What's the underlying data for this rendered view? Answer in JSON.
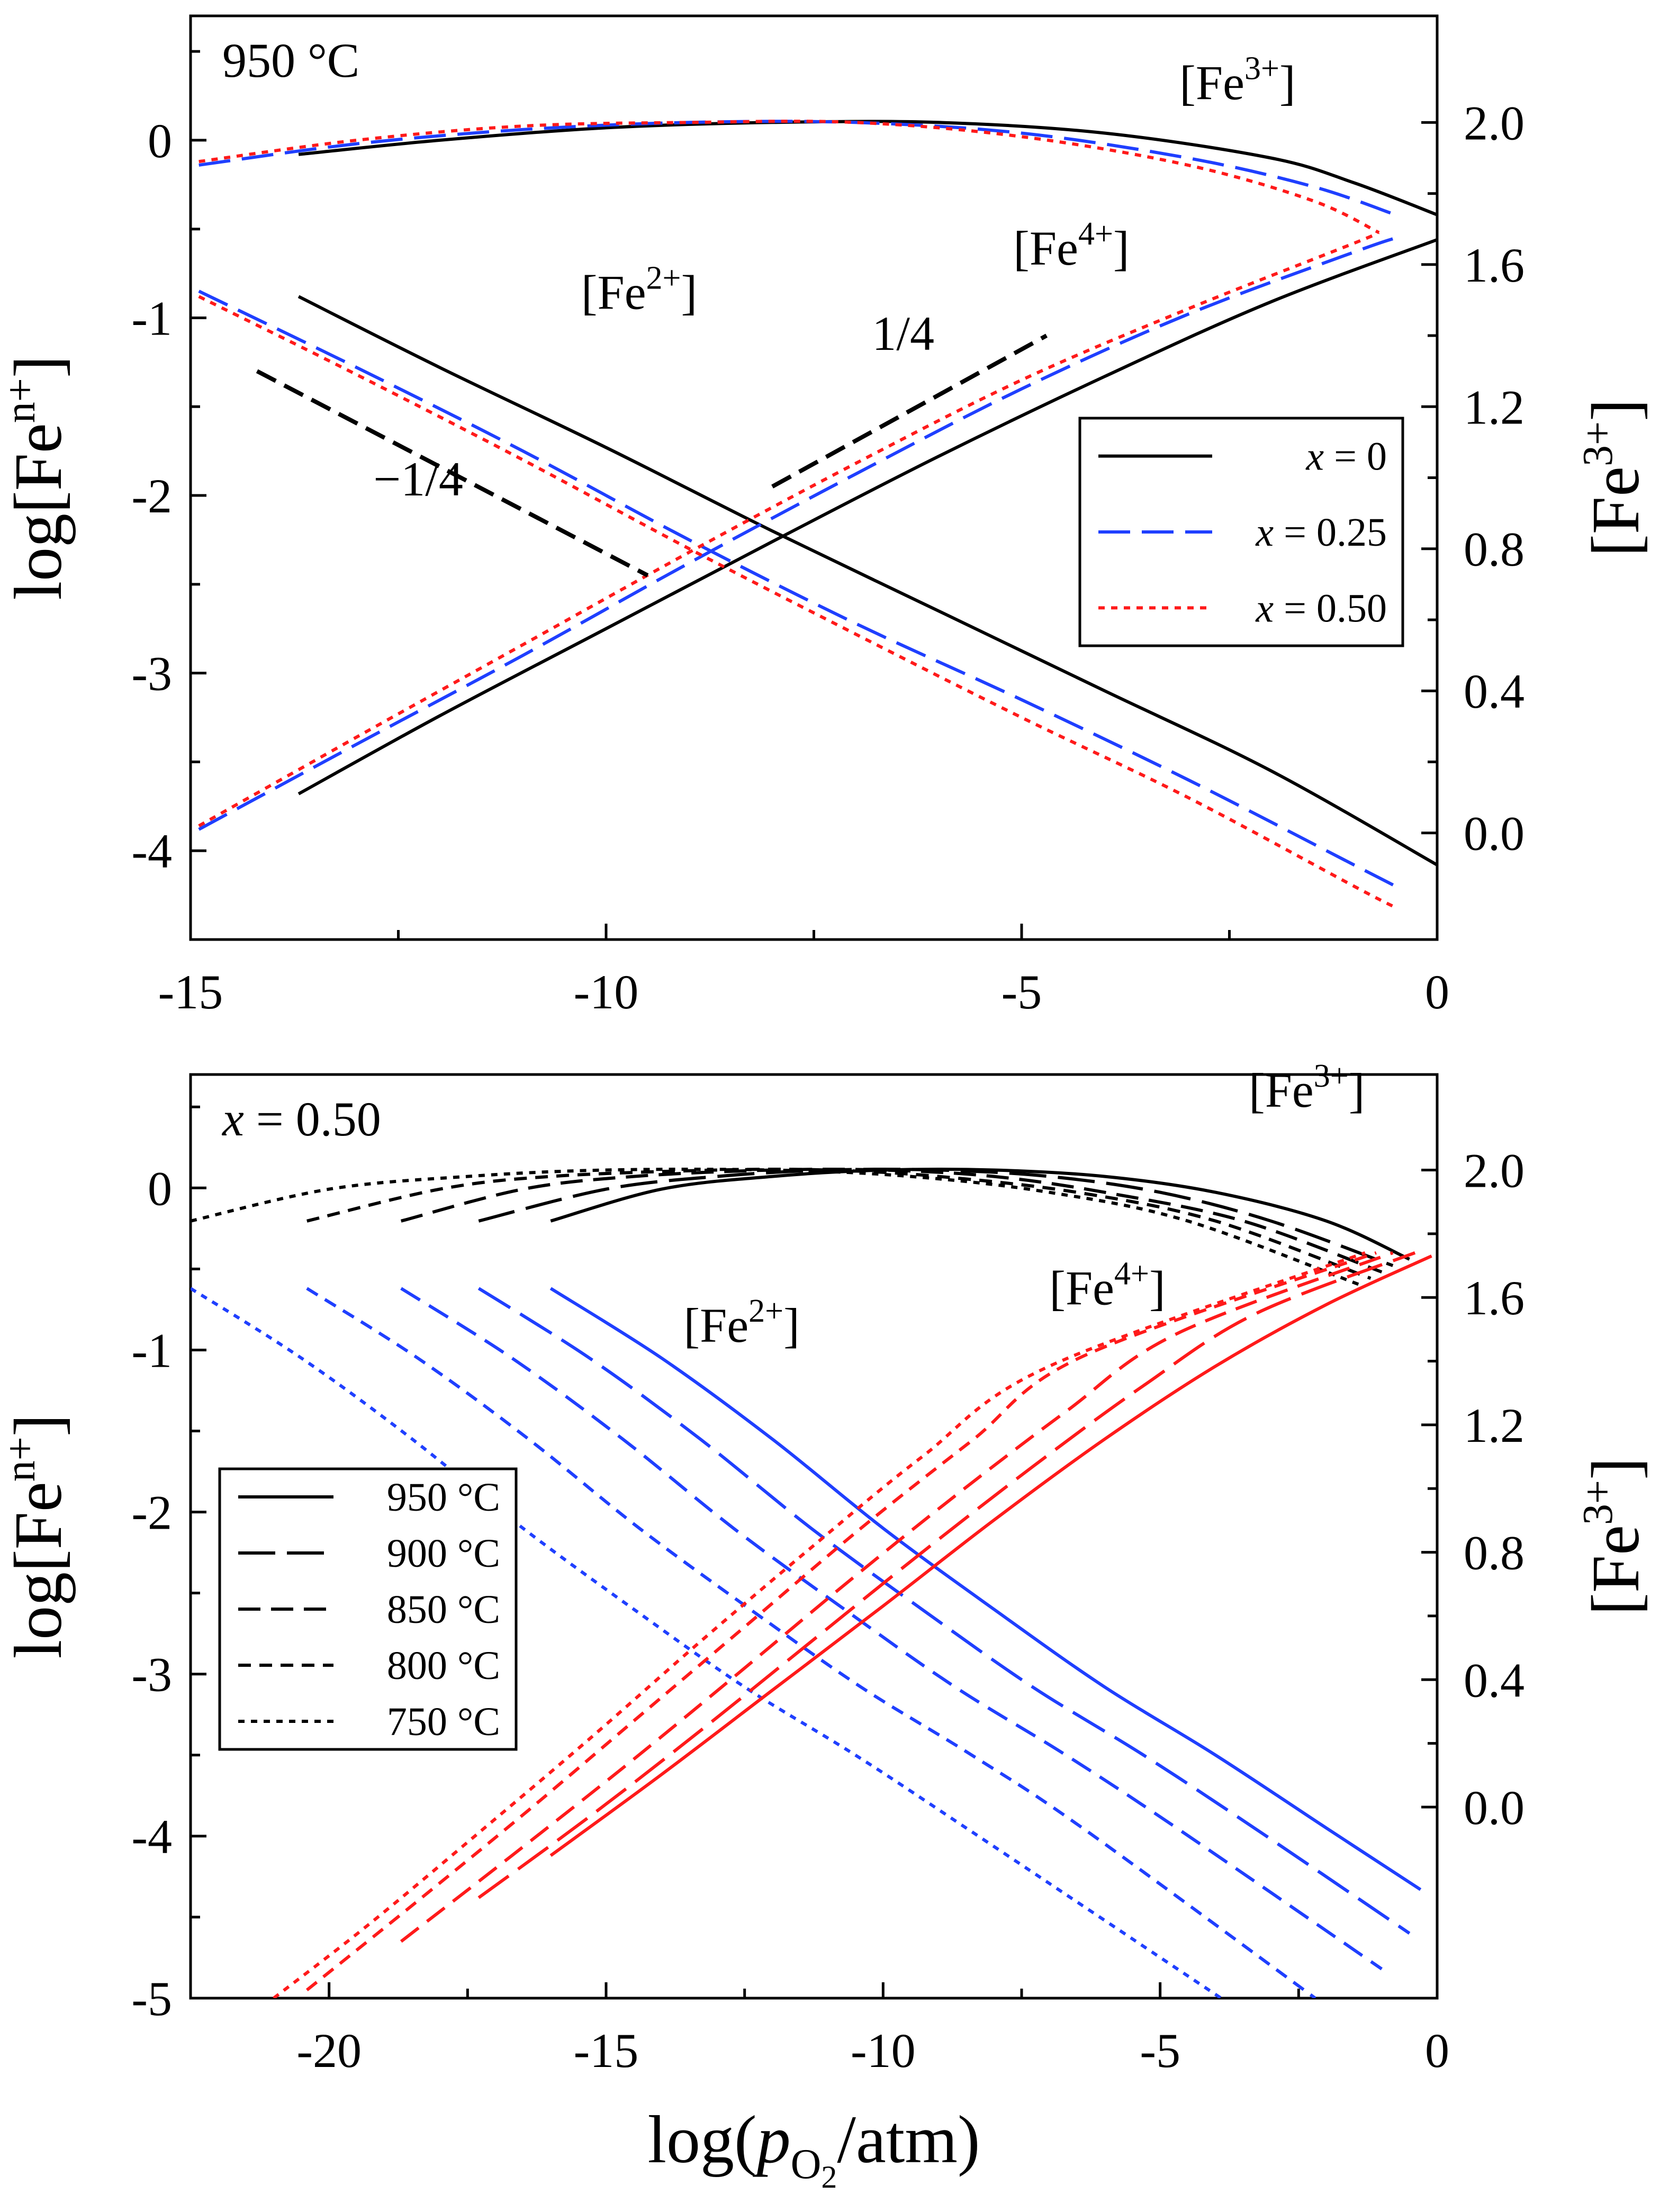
{
  "colors": {
    "black": "#000000",
    "blue": "#1f3fff",
    "red": "#ff1a1a"
  },
  "chart_data": [
    {
      "id": "top",
      "type": "line",
      "panel_label": "950 °C",
      "xlabel_prefix": "log(",
      "xlabel_italic": "p",
      "xlabel_sub": "O",
      "xlabel_subsub": "2",
      "xlabel_suffix": "/atm)",
      "ylabel_prefix": "log[Fe",
      "ylabel_sup": "n+",
      "ylabel_suffix": "]",
      "y2label_prefix": "[Fe",
      "y2label_sup": "3+",
      "y2label_suffix": "]",
      "xlim": [
        -15,
        0
      ],
      "ylim": [
        -4.5,
        0.7
      ],
      "y2lim": [
        -0.3,
        2.3
      ],
      "xticks": [
        -15,
        -10,
        -5,
        0
      ],
      "xtick_labels": [
        "-15",
        "-10",
        "-5",
        "0"
      ],
      "yticks": [
        0,
        -1,
        -2,
        -3,
        -4
      ],
      "ytick_labels": [
        "0",
        "-1",
        "-2",
        "-3",
        "-4"
      ],
      "y2ticks": [
        2.0,
        1.6,
        1.2,
        0.8,
        0.4,
        0.0
      ],
      "y2tick_labels": [
        "2.0",
        "1.6",
        "1.2",
        "0.8",
        "0.4",
        "0.0"
      ],
      "annotations": [
        {
          "name": "fe3-label",
          "base": "[Fe",
          "sup": "3+",
          "close": "]",
          "x": -3.1,
          "y": 0.23
        },
        {
          "name": "fe4-label",
          "base": "[Fe",
          "sup": "4+",
          "close": "]",
          "x": -5.1,
          "y": -0.7
        },
        {
          "name": "fe2-label",
          "base": "[Fe",
          "sup": "2+",
          "close": "]",
          "x": -10.3,
          "y": -0.95
        },
        {
          "name": "slope-neg-label",
          "base": "−1/4",
          "x": -12.8,
          "y": -2.0
        },
        {
          "name": "slope-pos-label",
          "base": "1/4",
          "x": -6.8,
          "y": -1.18
        }
      ],
      "slope_guides": [
        {
          "name": "slope-neg-guide",
          "x": [
            -14.2,
            -9.5
          ],
          "y": [
            -1.3,
            -2.45
          ]
        },
        {
          "name": "slope-pos-guide",
          "x": [
            -8.0,
            -4.7
          ],
          "y": [
            -1.95,
            -1.1
          ]
        }
      ],
      "series": [
        {
          "name": "x = 0 [Fe3+]",
          "legend": "x = 0",
          "group": "x=0",
          "style": "solid",
          "color": "#000000",
          "axis": "y2",
          "x": [
            -13.7,
            -12,
            -10,
            -8,
            -6,
            -4,
            -2,
            -1,
            0
          ],
          "y": [
            1.91,
            1.95,
            1.985,
            2.0,
            2.0,
            1.97,
            1.9,
            1.83,
            1.74
          ]
        },
        {
          "name": "x = 0 [Fe2+]",
          "group": "x=0",
          "style": "solid",
          "color": "#000000",
          "axis": "y",
          "x": [
            -13.7,
            -12,
            -10,
            -8,
            -6,
            -4,
            -2,
            0
          ],
          "y": [
            -0.88,
            -1.28,
            -1.73,
            -2.2,
            -2.65,
            -3.1,
            -3.55,
            -4.08
          ]
        },
        {
          "name": "x = 0 [Fe4+]",
          "group": "x=0",
          "style": "solid",
          "color": "#000000",
          "axis": "y",
          "x": [
            -13.7,
            -12,
            -10,
            -8,
            -6,
            -4,
            -2,
            0
          ],
          "y": [
            -3.68,
            -3.24,
            -2.75,
            -2.26,
            -1.78,
            -1.33,
            -0.91,
            -0.56
          ]
        },
        {
          "name": "x = 0.25 [Fe3+]",
          "legend": "x = 0.25",
          "group": "x=0.25",
          "style": "dashed",
          "color": "#1f3fff",
          "axis": "y2",
          "x": [
            -14.9,
            -13,
            -11,
            -9,
            -7,
            -5,
            -3,
            -1.5,
            -0.5
          ],
          "y": [
            1.88,
            1.94,
            1.98,
            2.0,
            2.0,
            1.97,
            1.9,
            1.82,
            1.74
          ]
        },
        {
          "name": "x = 0.25 [Fe2+]",
          "group": "x=0.25",
          "style": "dashed",
          "color": "#1f3fff",
          "axis": "y",
          "x": [
            -14.9,
            -13,
            -11,
            -9,
            -7,
            -5,
            -3,
            -1,
            -0.5
          ],
          "y": [
            -0.85,
            -1.28,
            -1.75,
            -2.25,
            -2.72,
            -3.15,
            -3.6,
            -4.08,
            -4.2
          ]
        },
        {
          "name": "x = 0.25 [Fe4+]",
          "group": "x=0.25",
          "style": "dashed",
          "color": "#1f3fff",
          "axis": "y",
          "x": [
            -14.9,
            -13,
            -11,
            -9,
            -7,
            -5,
            -3,
            -1,
            -0.5
          ],
          "y": [
            -3.88,
            -3.4,
            -2.9,
            -2.38,
            -1.88,
            -1.4,
            -0.98,
            -0.63,
            -0.55
          ]
        },
        {
          "name": "x = 0.50 [Fe3+]",
          "legend": "x = 0.50",
          "group": "x=0.50",
          "style": "dotted",
          "color": "#ff1a1a",
          "axis": "y2",
          "x": [
            -14.9,
            -13,
            -11,
            -9,
            -7,
            -5,
            -3,
            -1.5,
            -0.7
          ],
          "y": [
            1.89,
            1.95,
            1.99,
            2.0,
            2.0,
            1.96,
            1.88,
            1.78,
            1.69
          ]
        },
        {
          "name": "x = 0.50 [Fe2+]",
          "group": "x=0.50",
          "style": "dotted",
          "color": "#ff1a1a",
          "axis": "y",
          "x": [
            -14.9,
            -13,
            -11,
            -9,
            -7,
            -5,
            -3,
            -1,
            -0.5
          ],
          "y": [
            -0.88,
            -1.32,
            -1.8,
            -2.3,
            -2.78,
            -3.25,
            -3.7,
            -4.2,
            -4.32
          ]
        },
        {
          "name": "x = 0.50 [Fe4+]",
          "group": "x=0.50",
          "style": "dotted",
          "color": "#ff1a1a",
          "axis": "y",
          "x": [
            -14.9,
            -13,
            -11,
            -9,
            -7,
            -5,
            -3,
            -1,
            -0.7
          ],
          "y": [
            -3.86,
            -3.36,
            -2.84,
            -2.32,
            -1.82,
            -1.35,
            -0.95,
            -0.58,
            -0.52
          ]
        }
      ]
    },
    {
      "id": "bottom",
      "type": "line",
      "panel_label_italic": "x",
      "panel_label": " = 0.50",
      "xlabel_prefix": "log(",
      "xlabel_italic": "p",
      "xlabel_sub": "O",
      "xlabel_subsub": "2",
      "xlabel_suffix": "/atm)",
      "ylabel_prefix": "log[Fe",
      "ylabel_sup": "n+",
      "ylabel_suffix": "]",
      "y2label_prefix": "[Fe",
      "y2label_sup": "3+",
      "y2label_suffix": "]",
      "xlim": [
        -22.5,
        0
      ],
      "ylim": [
        -5,
        0.7
      ],
      "y2lim": [
        -0.6,
        2.3
      ],
      "xticks": [
        -20,
        -15,
        -10,
        -5,
        0
      ],
      "xtick_labels": [
        "-20",
        "-15",
        "-10",
        "-5",
        "0"
      ],
      "yticks": [
        0,
        -1,
        -2,
        -3,
        -4,
        -5
      ],
      "ytick_labels": [
        "0",
        "-1",
        "-2",
        "-3",
        "-4",
        "-5"
      ],
      "y2ticks": [
        2.0,
        1.6,
        1.2,
        0.8,
        0.4,
        0.0
      ],
      "y2tick_labels": [
        "2.0",
        "1.6",
        "1.2",
        "0.8",
        "0.4",
        "0.0"
      ],
      "annotations": [
        {
          "name": "fe3-label",
          "base": "[Fe",
          "sup": "3+",
          "close": "]",
          "x": -3.4,
          "y": 0.5
        },
        {
          "name": "fe4-label",
          "base": "[Fe",
          "sup": "4+",
          "close": "]",
          "x": -7.0,
          "y": -0.72
        },
        {
          "name": "fe2-label",
          "base": "[Fe",
          "sup": "2+",
          "close": "]",
          "x": -13.6,
          "y": -0.95
        }
      ],
      "series": [
        {
          "name": "950 °C [Fe3+]",
          "legend": "950 °C",
          "group": "950",
          "style": "solid",
          "color": "#000000",
          "axis": "y2",
          "x": [
            -16,
            -14,
            -12,
            -10,
            -8,
            -6,
            -4,
            -2,
            -0.5
          ],
          "y": [
            1.84,
            1.94,
            1.98,
            2.0,
            2.0,
            1.98,
            1.93,
            1.84,
            1.72
          ]
        },
        {
          "name": "900 °C [Fe3+]",
          "legend": "900 °C",
          "group": "900",
          "style": "dash-long",
          "color": "#000000",
          "axis": "y2",
          "x": [
            -17.3,
            -15,
            -13,
            -11,
            -9,
            -7,
            -5,
            -3,
            -0.8
          ],
          "y": [
            1.84,
            1.94,
            1.98,
            2.0,
            2.0,
            1.98,
            1.93,
            1.84,
            1.7
          ]
        },
        {
          "name": "850 °C [Fe3+]",
          "legend": "850 °C",
          "group": "850",
          "style": "dash-medium",
          "color": "#000000",
          "axis": "y2",
          "x": [
            -18.7,
            -16.5,
            -14.5,
            -12,
            -10,
            -8,
            -6,
            -3.5,
            -1.0
          ],
          "y": [
            1.84,
            1.94,
            1.98,
            2.0,
            2.0,
            1.98,
            1.93,
            1.84,
            1.68
          ]
        },
        {
          "name": "800 °C [Fe3+]",
          "legend": "800 °C",
          "group": "800",
          "style": "dash-short",
          "color": "#000000",
          "axis": "y2",
          "x": [
            -20.4,
            -18,
            -16,
            -13,
            -11,
            -9,
            -6.5,
            -4,
            -1.2
          ],
          "y": [
            1.84,
            1.94,
            1.98,
            2.0,
            2.0,
            1.98,
            1.93,
            1.84,
            1.66
          ]
        },
        {
          "name": "750 °C [Fe3+]",
          "legend": "750 °C",
          "group": "750",
          "style": "dotted",
          "color": "#000000",
          "axis": "y2",
          "x": [
            -22.5,
            -20,
            -17.5,
            -15,
            -12,
            -9.5,
            -7,
            -4.5,
            -1.4
          ],
          "y": [
            1.84,
            1.94,
            1.98,
            2.0,
            2.0,
            1.98,
            1.93,
            1.84,
            1.64
          ]
        },
        {
          "name": "950 °C [Fe2+]",
          "group": "950",
          "style": "solid",
          "color": "#1f3fff",
          "axis": "y",
          "x": [
            -16,
            -14,
            -12,
            -10,
            -8,
            -6,
            -4,
            -2,
            -0.3
          ],
          "y": [
            -0.62,
            -1.05,
            -1.55,
            -2.1,
            -2.6,
            -3.08,
            -3.5,
            -3.95,
            -4.33
          ]
        },
        {
          "name": "900 °C [Fe2+]",
          "group": "900",
          "style": "dash-long",
          "color": "#1f3fff",
          "axis": "y",
          "x": [
            -17.3,
            -15.3,
            -13.3,
            -11.3,
            -9.3,
            -7.3,
            -5.3,
            -3.3,
            -0.5
          ],
          "y": [
            -0.62,
            -1.05,
            -1.55,
            -2.1,
            -2.6,
            -3.08,
            -3.5,
            -3.95,
            -4.6
          ]
        },
        {
          "name": "850 °C [Fe2+]",
          "group": "850",
          "style": "dash-medium",
          "color": "#1f3fff",
          "axis": "y",
          "x": [
            -18.7,
            -16.7,
            -14.7,
            -12.7,
            -10.7,
            -8.7,
            -6.7,
            -4.7,
            -1.0
          ],
          "y": [
            -0.62,
            -1.05,
            -1.55,
            -2.1,
            -2.6,
            -3.08,
            -3.5,
            -3.95,
            -4.82
          ]
        },
        {
          "name": "800 °C [Fe2+]",
          "group": "800",
          "style": "dash-short",
          "color": "#1f3fff",
          "axis": "y",
          "x": [
            -20.4,
            -18.4,
            -16.4,
            -14.4,
            -12.4,
            -10.4,
            -8.4,
            -6.4,
            -2.2
          ],
          "y": [
            -0.62,
            -1.05,
            -1.55,
            -2.1,
            -2.6,
            -3.08,
            -3.5,
            -3.95,
            -5.0
          ]
        },
        {
          "name": "750 °C [Fe2+]",
          "group": "750",
          "style": "dotted",
          "color": "#1f3fff",
          "axis": "y",
          "x": [
            -22.5,
            -20.5,
            -18.5,
            -16.5,
            -14.5,
            -12.5,
            -10.5,
            -8.5,
            -3.9
          ],
          "y": [
            -0.62,
            -1.05,
            -1.55,
            -2.1,
            -2.6,
            -3.08,
            -3.5,
            -3.95,
            -5.0
          ]
        },
        {
          "name": "950 °C [Fe4+]",
          "group": "950",
          "style": "solid",
          "color": "#ff1a1a",
          "axis": "y",
          "x": [
            -16,
            -14,
            -12,
            -10,
            -8,
            -6,
            -4,
            -2,
            -0.1
          ],
          "y": [
            -4.12,
            -3.62,
            -3.1,
            -2.58,
            -2.05,
            -1.55,
            -1.1,
            -0.72,
            -0.42
          ]
        },
        {
          "name": "900 °C [Fe4+]",
          "group": "900",
          "style": "dash-long",
          "color": "#ff1a1a",
          "axis": "y",
          "x": [
            -17.3,
            -15.3,
            -13.3,
            -11.3,
            -9.3,
            -7.3,
            -5.3,
            -3.3,
            -0.4
          ],
          "y": [
            -4.38,
            -3.88,
            -3.35,
            -2.8,
            -2.25,
            -1.72,
            -1.22,
            -0.78,
            -0.4
          ]
        },
        {
          "name": "850 °C [Fe4+]",
          "group": "850",
          "style": "dash-medium",
          "color": "#ff1a1a",
          "axis": "y",
          "x": [
            -18.7,
            -16.7,
            -14.7,
            -12.7,
            -10.7,
            -8.7,
            -6.7,
            -4.7,
            -0.8
          ],
          "y": [
            -4.65,
            -4.12,
            -3.58,
            -3.02,
            -2.45,
            -1.9,
            -1.38,
            -0.9,
            -0.4
          ]
        },
        {
          "name": "800 °C [Fe4+]",
          "group": "800",
          "style": "dash-short",
          "color": "#ff1a1a",
          "axis": "y",
          "x": [
            -20.4,
            -18.4,
            -16.4,
            -14.4,
            -12.4,
            -10.4,
            -8.4,
            -6.4,
            -1.1
          ],
          "y": [
            -4.95,
            -4.4,
            -3.84,
            -3.26,
            -2.68,
            -2.1,
            -1.56,
            -1.04,
            -0.4
          ]
        },
        {
          "name": "750 °C [Fe4+]",
          "group": "750",
          "style": "dotted",
          "color": "#ff1a1a",
          "axis": "y",
          "x": [
            -21.0,
            -19.3,
            -17.3,
            -15.3,
            -13.3,
            -11.3,
            -9.3,
            -7.0,
            -1.3
          ],
          "y": [
            -5.0,
            -4.55,
            -3.98,
            -3.4,
            -2.8,
            -2.22,
            -1.66,
            -1.1,
            -0.4
          ]
        }
      ]
    }
  ]
}
